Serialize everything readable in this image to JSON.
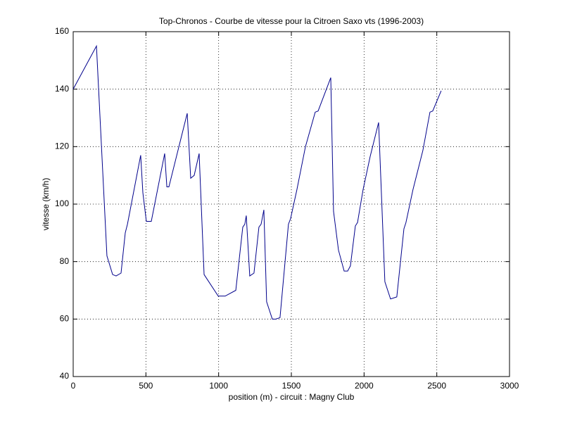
{
  "chart_data": {
    "type": "line",
    "title": "Top-Chronos - Courbe de vitesse pour la Citroen Saxo vts (1996-2003)",
    "xlabel": "position (m) - circuit : Magny Club",
    "ylabel": "vitesse (km/h)",
    "x": [
      0,
      160,
      232,
      271,
      295,
      329,
      358,
      373,
      464,
      479,
      503,
      537,
      629,
      644,
      658,
      784,
      808,
      832,
      866,
      900,
      997,
      1045,
      1118,
      1166,
      1180,
      1190,
      1214,
      1243,
      1277,
      1292,
      1311,
      1330,
      1369,
      1393,
      1422,
      1480,
      1495,
      1538,
      1597,
      1664,
      1684,
      1771,
      1790,
      1824,
      1863,
      1887,
      1906,
      1940,
      1955,
      1993,
      2042,
      2100,
      2143,
      2182,
      2225,
      2274,
      2288,
      2336,
      2404,
      2453,
      2472,
      2530
    ],
    "series": [
      {
        "name": "vitesse",
        "color": "#00008b",
        "values": [
          140,
          155,
          82,
          75.5,
          75,
          76,
          90,
          93,
          117,
          104,
          94,
          94,
          117.6,
          106,
          106,
          131.6,
          109,
          110,
          117.6,
          75.5,
          68,
          68,
          70,
          92,
          93,
          96,
          75,
          76,
          92,
          93,
          98,
          66,
          60,
          60,
          60.5,
          93,
          95,
          105,
          120,
          132,
          132.4,
          144,
          97.5,
          84,
          76.7,
          76.7,
          78.5,
          92.4,
          93.6,
          105,
          116.6,
          128.4,
          73,
          67,
          67.7,
          91.4,
          93.6,
          105,
          118.6,
          132,
          132.4,
          139.4
        ]
      }
    ],
    "xlim": [
      0,
      3000
    ],
    "xticks": [
      0,
      500,
      1000,
      1500,
      2000,
      2500,
      3000
    ],
    "ylim": [
      40,
      160
    ],
    "yticks": [
      40,
      60,
      80,
      100,
      120,
      140,
      160
    ],
    "grid": true
  }
}
